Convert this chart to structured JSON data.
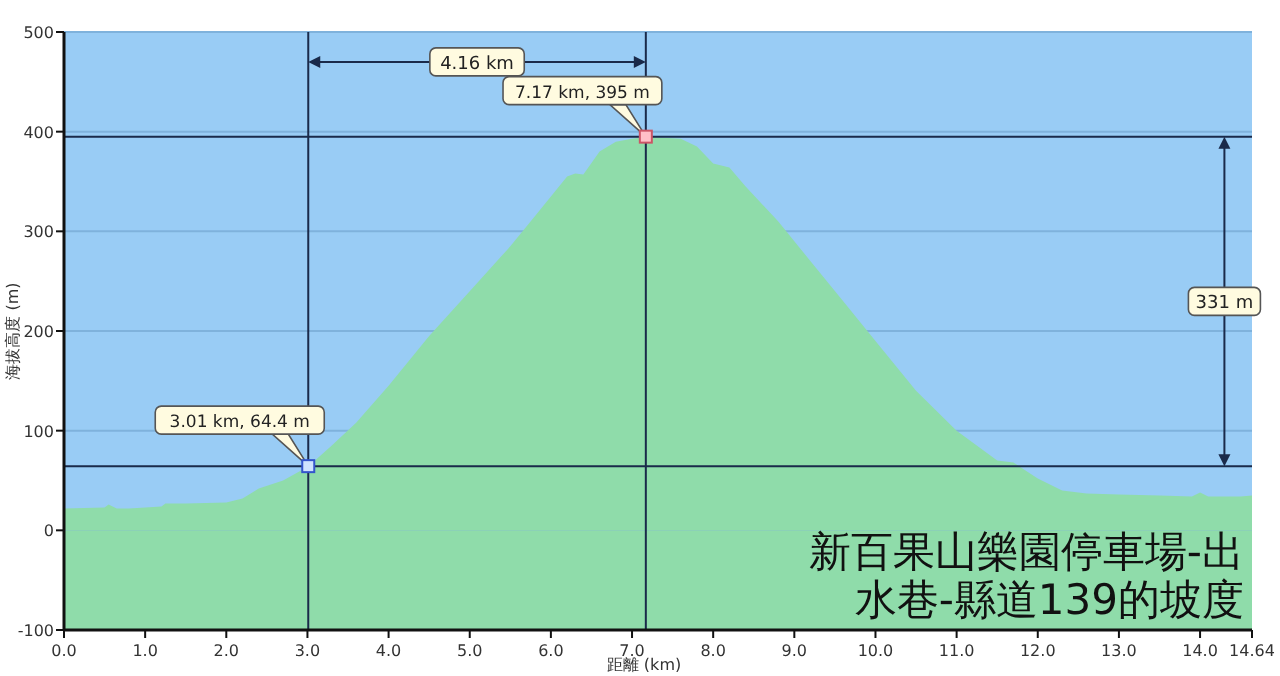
{
  "chart_data": {
    "type": "area",
    "title": "新百果山樂園停車場-出水巷-縣道139的坡度",
    "xlabel": "距離 (km)",
    "ylabel": "海拔高度 (m)",
    "x": [
      0,
      0.5,
      0.55,
      0.65,
      0.8,
      1.2,
      1.25,
      1.5,
      2.0,
      2.2,
      2.4,
      2.7,
      3.01,
      3.3,
      3.6,
      4.0,
      4.5,
      5.0,
      5.5,
      5.8,
      6.0,
      6.2,
      6.3,
      6.4,
      6.6,
      6.8,
      7.0,
      7.17,
      7.4,
      7.6,
      7.8,
      8.0,
      8.2,
      8.4,
      8.8,
      9.2,
      9.6,
      10.0,
      10.5,
      11.0,
      11.5,
      11.7,
      12.0,
      12.3,
      12.6,
      13.0,
      13.5,
      13.9,
      14.0,
      14.1,
      14.5,
      14.64
    ],
    "series": [
      {
        "color": "#8fdcaa",
        "values": [
          22,
          23,
          26,
          22,
          22,
          24,
          27,
          27,
          28,
          32,
          42,
          50,
          64,
          85,
          108,
          145,
          195,
          240,
          285,
          315,
          335,
          355,
          358,
          357,
          380,
          390,
          393,
          395,
          394,
          393,
          385,
          368,
          364,
          345,
          310,
          270,
          230,
          190,
          140,
          100,
          70,
          68,
          52,
          40,
          37,
          36,
          35,
          34,
          38,
          34,
          34,
          35
        ]
      }
    ],
    "xlim": [
      0,
      14.64
    ],
    "xticks": [
      {
        "value": 0,
        "label": "0.0"
      },
      {
        "value": 1,
        "label": "1.0"
      },
      {
        "value": 2,
        "label": "2.0"
      },
      {
        "value": 3,
        "label": "3.0"
      },
      {
        "value": 4,
        "label": "4.0"
      },
      {
        "value": 5,
        "label": "5.0"
      },
      {
        "value": 6,
        "label": "6.0"
      },
      {
        "value": 7,
        "label": "7.0"
      },
      {
        "value": 8,
        "label": "8.0"
      },
      {
        "value": 9,
        "label": "9.0"
      },
      {
        "value": 10,
        "label": "10.0"
      },
      {
        "value": 11,
        "label": "11.0"
      },
      {
        "value": 12,
        "label": "12.0"
      },
      {
        "value": 13,
        "label": "13.0"
      },
      {
        "value": 14,
        "label": "14.0"
      },
      14.64
    ],
    "ylim": [
      -100,
      500
    ],
    "yticks": [
      -100,
      0,
      100,
      200,
      300,
      400,
      500
    ],
    "grid": "y",
    "bands": [
      {
        "axis": "y",
        "from": -100,
        "to": 0,
        "color": "#8fdcaa"
      }
    ],
    "ref_lines": [
      {
        "axis": "x",
        "value": 3.01,
        "color": "#1a2a4a"
      },
      {
        "axis": "x",
        "value": 7.17,
        "color": "#1a2a4a"
      },
      {
        "axis": "y",
        "value": 64.4,
        "color": "#1a2a4a"
      },
      {
        "axis": "y",
        "value": 395,
        "color": "#1a2a4a"
      }
    ],
    "annotations": [
      {
        "text": "3.01 km, 64.4 m",
        "x": 3.01,
        "y": 64.4
      },
      {
        "text": "7.17 km, 395 m",
        "x": 7.17,
        "y": 395
      },
      "4.16 km",
      "331 m"
    ]
  }
}
